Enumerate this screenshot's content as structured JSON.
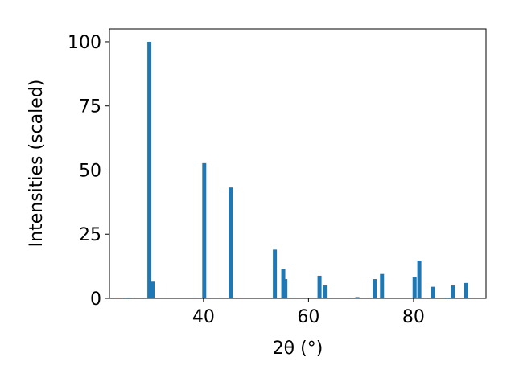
{
  "chart_data": {
    "type": "bar",
    "xlabel": "2θ (°)",
    "ylabel": "Intensities (scaled)",
    "x": [
      25.6,
      29.7,
      30.3,
      40.15,
      45.2,
      53.6,
      55.2,
      55.6,
      62.1,
      63.1,
      69.3,
      72.6,
      74.0,
      80.2,
      81.1,
      83.7,
      86.7,
      87.5,
      90.0
    ],
    "values": [
      0.3,
      100,
      6.5,
      52.7,
      43.2,
      19,
      11.5,
      7.5,
      8.8,
      5,
      0.5,
      7.5,
      9.5,
      8.3,
      14.7,
      4.5,
      0.3,
      5,
      6
    ],
    "color": "#1f77b4",
    "xlim": [
      22.1,
      93.8
    ],
    "ylim": [
      0,
      105
    ],
    "xticks": [
      40,
      60,
      80
    ],
    "yticks": [
      0,
      25,
      50,
      75,
      100
    ],
    "grid": false
  }
}
